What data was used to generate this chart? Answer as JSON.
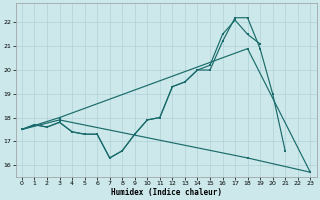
{
  "background_color": "#cce8ea",
  "grid_color": "#aaccd4",
  "line_color": "#1a6b6b",
  "xlabel": "Humidex (Indice chaleur)",
  "xlim": [
    -0.5,
    23.5
  ],
  "ylim": [
    15.5,
    22.8
  ],
  "yticks": [
    16,
    17,
    18,
    19,
    20,
    21,
    22
  ],
  "xticks": [
    0,
    1,
    2,
    3,
    4,
    5,
    6,
    7,
    8,
    9,
    10,
    11,
    12,
    13,
    14,
    15,
    16,
    17,
    18,
    19,
    20,
    21,
    22,
    23
  ],
  "curve1_x": [
    0,
    1,
    2,
    3,
    4,
    5,
    6,
    7,
    8,
    9,
    10,
    11,
    12,
    13,
    14,
    15,
    16,
    17,
    18,
    19,
    20,
    21
  ],
  "curve1_y": [
    17.5,
    17.7,
    17.6,
    17.8,
    17.4,
    17.3,
    17.3,
    16.3,
    16.6,
    17.3,
    17.9,
    18.0,
    19.3,
    19.5,
    20.0,
    20.0,
    21.2,
    22.2,
    22.2,
    20.9,
    19.0,
    16.6
  ],
  "curve2_x": [
    0,
    1,
    2,
    3,
    4,
    5,
    6,
    7,
    8,
    9,
    10,
    11,
    12,
    13,
    14,
    15,
    16,
    17,
    18,
    19
  ],
  "curve2_y": [
    17.5,
    17.7,
    17.6,
    17.8,
    17.4,
    17.3,
    17.3,
    16.3,
    16.6,
    17.3,
    17.9,
    18.0,
    19.3,
    19.5,
    20.0,
    20.2,
    21.5,
    22.1,
    21.5,
    21.1
  ],
  "curve3_x": [
    0,
    3,
    18,
    23
  ],
  "curve3_y": [
    17.5,
    18.0,
    20.9,
    15.7
  ],
  "curve4_x": [
    0,
    3,
    18,
    23
  ],
  "curve4_y": [
    17.5,
    17.9,
    16.3,
    15.7
  ]
}
